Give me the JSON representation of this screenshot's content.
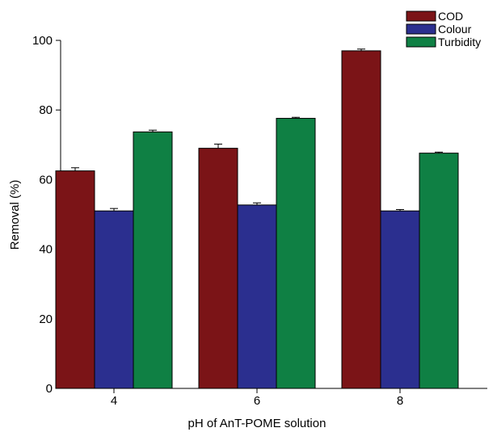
{
  "chart_data": {
    "type": "bar",
    "title": "",
    "xlabel": "pH of AnT-POME solution",
    "ylabel": "Removal (%)",
    "categories": [
      "4",
      "6",
      "8"
    ],
    "ylim": [
      0,
      100
    ],
    "yticks": [
      0,
      20,
      40,
      60,
      80,
      100
    ],
    "grid": false,
    "legend_position": "top-right",
    "series": [
      {
        "name": "COD",
        "values": [
          62.5,
          69.0,
          97.0
        ],
        "errors": [
          0.9,
          1.2,
          0.5
        ],
        "color": "#7b1417"
      },
      {
        "name": "Colour",
        "values": [
          51.0,
          52.7,
          51.0
        ],
        "errors": [
          0.7,
          0.6,
          0.4
        ],
        "color": "#2b2f8f"
      },
      {
        "name": "Turbidity",
        "values": [
          73.7,
          77.6,
          67.6
        ],
        "errors": [
          0.5,
          0.3,
          0.3
        ],
        "color": "#0f8044"
      }
    ]
  }
}
